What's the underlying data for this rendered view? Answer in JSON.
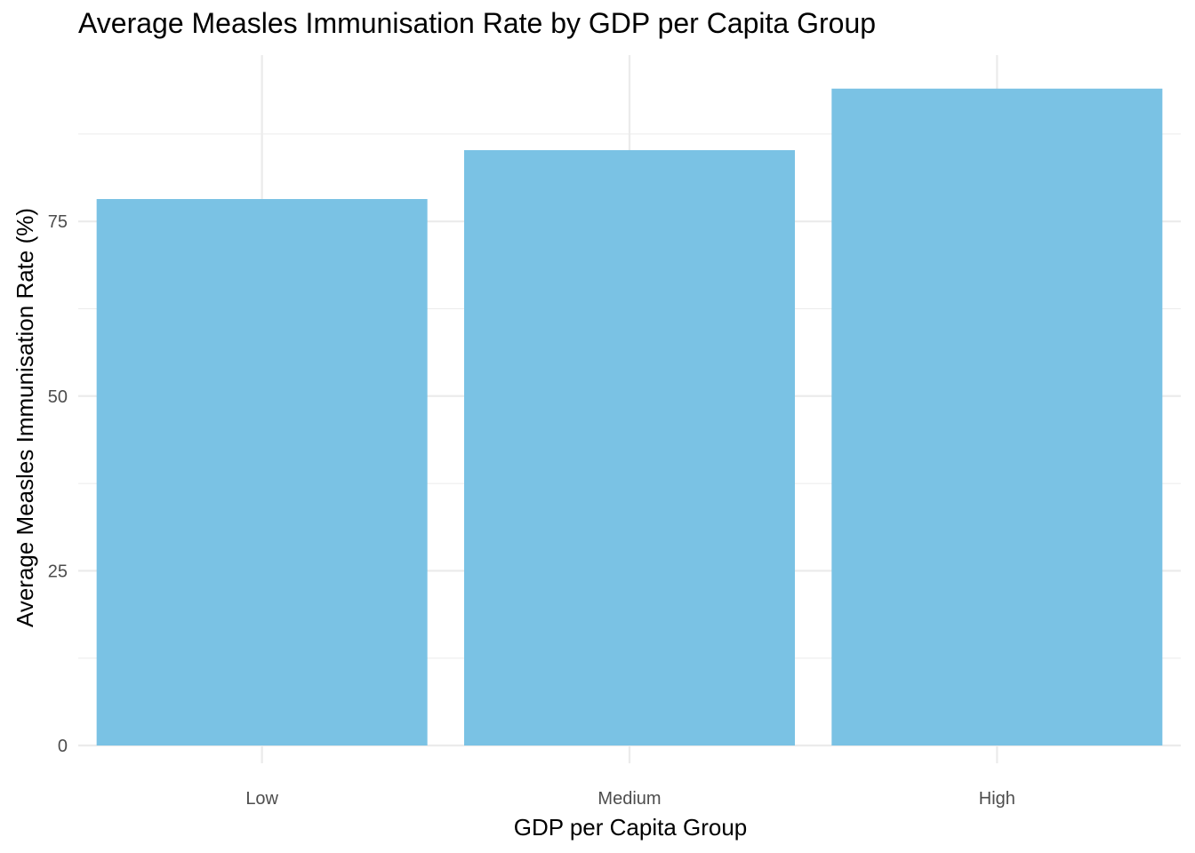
{
  "chart_data": {
    "type": "bar",
    "title": "Average Measles Immunisation Rate by GDP per Capita Group",
    "xlabel": "GDP per Capita Group",
    "ylabel": "Average Measles Immunisation Rate (%)",
    "categories": [
      "Low",
      "Medium",
      "High"
    ],
    "values": [
      78.2,
      85.2,
      94.0
    ],
    "ylim": [
      0,
      98.8
    ],
    "yticks": [
      0,
      25,
      50,
      75
    ],
    "ytick_labels": [
      "0",
      "25",
      "50",
      "75"
    ],
    "grid": true,
    "bar_color": "#7AC2E4",
    "grid_color": "#EBEBEB"
  }
}
